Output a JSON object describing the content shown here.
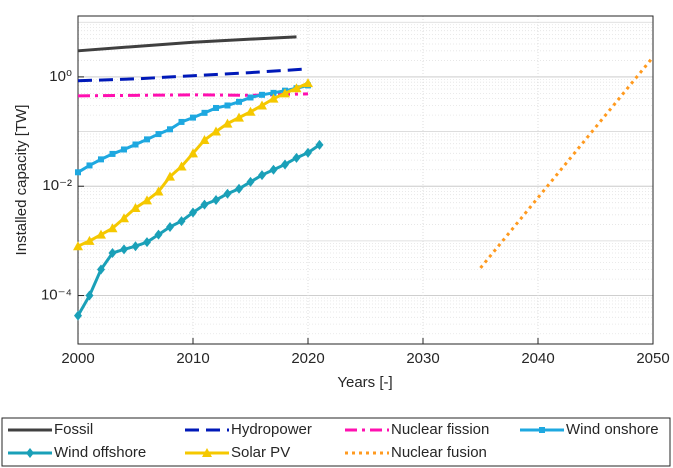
{
  "chart_data": {
    "type": "line",
    "x_label": "Years [-]",
    "y_label": "Installed capacity [TW]",
    "xlim": [
      2000,
      2050
    ],
    "xticks": [
      2000,
      2010,
      2020,
      2030,
      2040,
      2050
    ],
    "ylim": [
      1.3e-05,
      13
    ],
    "yticks": [
      {
        "value": 0.0001,
        "label": "10⁻⁴"
      },
      {
        "value": 0.01,
        "label": "10⁻²"
      },
      {
        "value": 1,
        "label": "10⁰"
      }
    ],
    "y_scale": "log",
    "grid": true,
    "legend": "bottom",
    "series": [
      {
        "name": "Fossil",
        "color": "#404040",
        "style": "solid",
        "marker": "none",
        "x": [
          2000,
          2005,
          2010,
          2015,
          2019
        ],
        "values": [
          3.0,
          3.6,
          4.3,
          4.9,
          5.4
        ]
      },
      {
        "name": "Hydropower",
        "color": "#0019b8",
        "style": "dashed",
        "marker": "none",
        "x": [
          2000,
          2005,
          2010,
          2015,
          2020
        ],
        "values": [
          0.85,
          0.92,
          1.05,
          1.2,
          1.4
        ]
      },
      {
        "name": "Nuclear fission",
        "color": "#ff10b0",
        "style": "dashdot",
        "marker": "none",
        "x": [
          2000,
          2005,
          2010,
          2015,
          2020
        ],
        "values": [
          0.45,
          0.46,
          0.47,
          0.46,
          0.49
        ]
      },
      {
        "name": "Wind onshore",
        "color": "#1ea8e0",
        "style": "solid",
        "marker": "square",
        "x": [
          2000,
          2001,
          2002,
          2003,
          2004,
          2005,
          2006,
          2007,
          2008,
          2009,
          2010,
          2011,
          2012,
          2013,
          2014,
          2015,
          2016,
          2017,
          2018,
          2019,
          2020
        ],
        "values": [
          0.018,
          0.024,
          0.031,
          0.039,
          0.047,
          0.058,
          0.072,
          0.09,
          0.11,
          0.15,
          0.18,
          0.22,
          0.27,
          0.3,
          0.35,
          0.42,
          0.47,
          0.51,
          0.56,
          0.62,
          0.7
        ]
      },
      {
        "name": "Wind offshore",
        "color": "#1aa0b8",
        "style": "solid",
        "marker": "diamond",
        "x": [
          2000,
          2001,
          2002,
          2003,
          2004,
          2005,
          2006,
          2007,
          2008,
          2009,
          2010,
          2011,
          2012,
          2013,
          2014,
          2015,
          2016,
          2017,
          2018,
          2019,
          2020,
          2021
        ],
        "values": [
          4.3e-05,
          0.0001,
          0.0003,
          0.0006,
          0.0007,
          0.0008,
          0.00095,
          0.0013,
          0.0018,
          0.0023,
          0.0033,
          0.0046,
          0.0056,
          0.0073,
          0.009,
          0.012,
          0.016,
          0.02,
          0.025,
          0.033,
          0.041,
          0.057
        ]
      },
      {
        "name": "Solar PV",
        "color": "#f5c800",
        "style": "solid",
        "marker": "triangle",
        "x": [
          2000,
          2001,
          2002,
          2003,
          2004,
          2005,
          2006,
          2007,
          2008,
          2009,
          2010,
          2011,
          2012,
          2013,
          2014,
          2015,
          2016,
          2017,
          2018,
          2019,
          2020
        ],
        "values": [
          0.0008,
          0.001,
          0.0013,
          0.0017,
          0.0026,
          0.004,
          0.0055,
          0.008,
          0.015,
          0.023,
          0.04,
          0.07,
          0.1,
          0.14,
          0.18,
          0.23,
          0.3,
          0.4,
          0.5,
          0.62,
          0.77
        ]
      },
      {
        "name": "Nuclear fusion",
        "color": "#ff9a1f",
        "style": "dotted",
        "marker": "none",
        "x": [
          2035,
          2050
        ],
        "values": [
          0.00032,
          2.3
        ]
      }
    ]
  }
}
